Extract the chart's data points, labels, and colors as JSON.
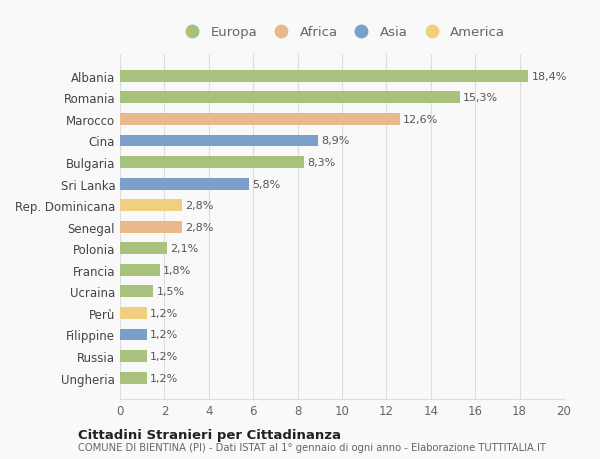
{
  "countries": [
    "Albania",
    "Romania",
    "Marocco",
    "Cina",
    "Bulgaria",
    "Sri Lanka",
    "Rep. Dominicana",
    "Senegal",
    "Polonia",
    "Francia",
    "Ucraina",
    "Perù",
    "Filippine",
    "Russia",
    "Ungheria"
  ],
  "values": [
    18.4,
    15.3,
    12.6,
    8.9,
    8.3,
    5.8,
    2.8,
    2.8,
    2.1,
    1.8,
    1.5,
    1.2,
    1.2,
    1.2,
    1.2
  ],
  "labels": [
    "18,4%",
    "15,3%",
    "12,6%",
    "8,9%",
    "8,3%",
    "5,8%",
    "2,8%",
    "2,8%",
    "2,1%",
    "1,8%",
    "1,5%",
    "1,2%",
    "1,2%",
    "1,2%",
    "1,2%"
  ],
  "continents": [
    "Europa",
    "Europa",
    "Africa",
    "Asia",
    "Europa",
    "Asia",
    "America",
    "Africa",
    "Europa",
    "Europa",
    "Europa",
    "America",
    "Asia",
    "Europa",
    "Europa"
  ],
  "colors": {
    "Europa": "#a8c17c",
    "Africa": "#e8b98a",
    "Asia": "#7b9fc8",
    "America": "#f0d080"
  },
  "legend_order": [
    "Europa",
    "Africa",
    "Asia",
    "America"
  ],
  "xlim": [
    0,
    20
  ],
  "xticks": [
    0,
    2,
    4,
    6,
    8,
    10,
    12,
    14,
    16,
    18,
    20
  ],
  "title": "Cittadini Stranieri per Cittadinanza",
  "subtitle": "COMUNE DI BIENTINA (PI) - Dati ISTAT al 1° gennaio di ogni anno - Elaborazione TUTTITALIA.IT",
  "bg_color": "#f9f9f9",
  "grid_color": "#dddddd"
}
